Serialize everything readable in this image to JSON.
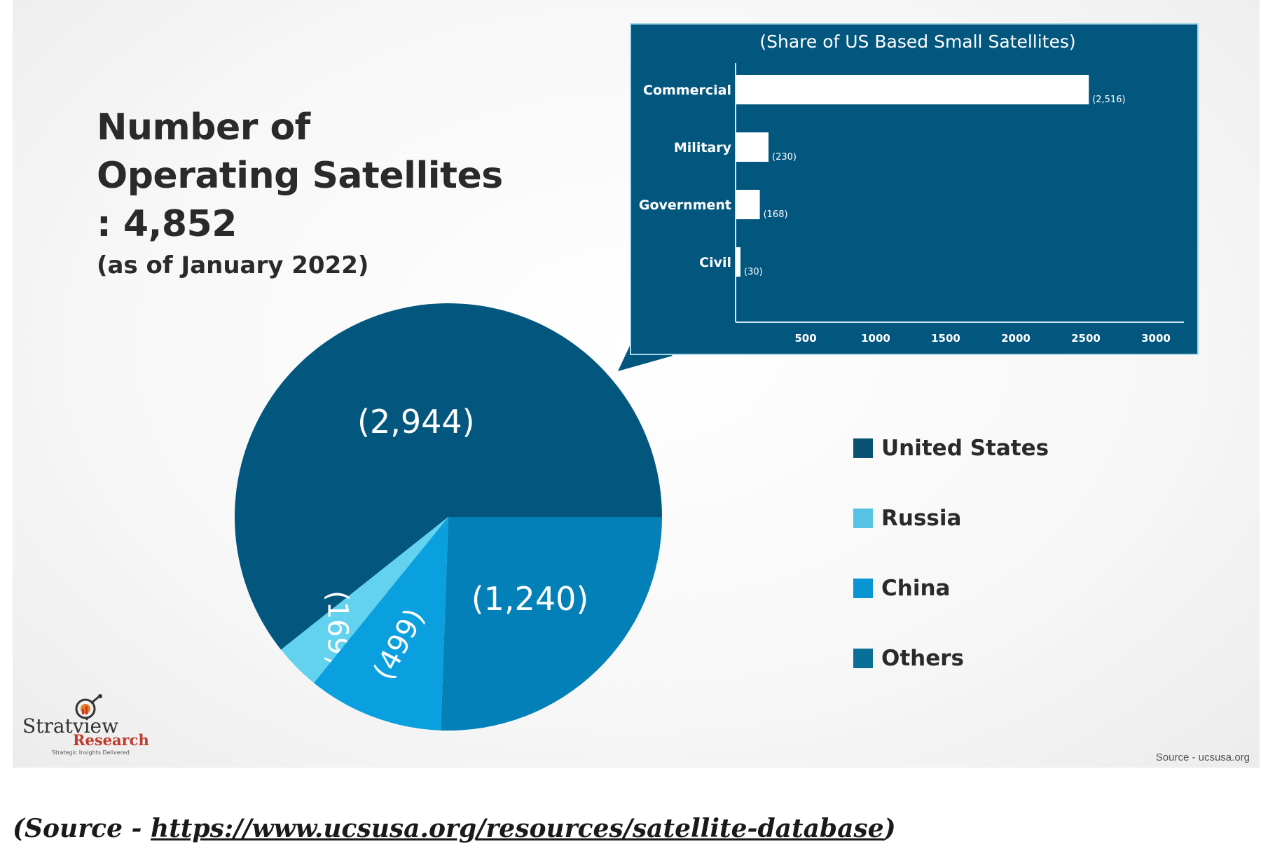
{
  "title": "Number of Operating Satellites : 4,852",
  "subtitle": "(as of January 2022)",
  "chart_data": [
    {
      "type": "pie",
      "categories": [
        "United States",
        "Russia",
        "China",
        "Others"
      ],
      "values": [
        2944,
        169,
        499,
        1240
      ],
      "value_labels": [
        "(2,944)",
        "(169)",
        "(499)",
        "(1,240)"
      ],
      "slice_colors": [
        "#03577e",
        "#62d2ef",
        "#0aa0df",
        "#0480b8"
      ],
      "legend": {
        "placement": "right",
        "items": [
          {
            "label": "United States",
            "color": "#0a5274"
          },
          {
            "label": "Russia",
            "color": "#58c2e6"
          },
          {
            "label": "China",
            "color": "#0895d2"
          },
          {
            "label": "Others",
            "color": "#0a6f97"
          }
        ]
      }
    },
    {
      "type": "bar",
      "orientation": "horizontal",
      "title": "(Share of US Based Small Satellites)",
      "categories": [
        "Commercial",
        "Military",
        "Government",
        "Civil"
      ],
      "values": [
        2516,
        230,
        168,
        30
      ],
      "value_labels": [
        "(2,516)",
        "(230)",
        "(168)",
        "(30)"
      ],
      "xlim": [
        0,
        3200
      ],
      "xticks": [
        500,
        1000,
        1500,
        2000,
        2500,
        3000
      ],
      "xtick_labels": [
        "500",
        "1000",
        "1500",
        "2000",
        "2500",
        "3000"
      ],
      "background": "#03577e",
      "bar_color": "#ffffff"
    }
  ],
  "logo": {
    "name": "Stratview",
    "sub": "Research",
    "tagline": "Strategic Insights Delivered"
  },
  "source_note": "Source - ucsusa.org",
  "footer": {
    "prefix": "(Source - ",
    "link": "https://www.ucsusa.org/resources/satellite-database",
    "suffix": ")"
  }
}
